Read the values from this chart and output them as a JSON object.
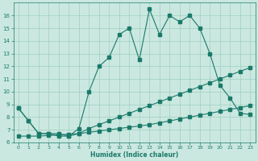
{
  "title": "",
  "xlabel": "Humidex (Indice chaleur)",
  "bg_color": "#cbe8e0",
  "grid_color": "#9ecfbf",
  "line_color": "#1a7a6a",
  "xlim": [
    -0.5,
    23.5
  ],
  "ylim": [
    6,
    17
  ],
  "xticks": [
    0,
    1,
    2,
    3,
    4,
    5,
    6,
    7,
    8,
    9,
    10,
    11,
    12,
    13,
    14,
    15,
    16,
    17,
    18,
    19,
    20,
    21,
    22,
    23
  ],
  "yticks": [
    6,
    7,
    8,
    9,
    10,
    11,
    12,
    13,
    14,
    15,
    16
  ],
  "line1_x": [
    0,
    1,
    2,
    3,
    4,
    5,
    6,
    7,
    8,
    9,
    10,
    11,
    12,
    13,
    14,
    15,
    16,
    17,
    18,
    19,
    20,
    21,
    22,
    23
  ],
  "line1_y": [
    8.7,
    7.7,
    6.7,
    6.7,
    6.7,
    6.5,
    6.7,
    7.1,
    7.4,
    7.7,
    8.0,
    8.3,
    8.6,
    8.9,
    9.2,
    9.5,
    9.8,
    10.1,
    10.4,
    10.7,
    11.0,
    11.3,
    11.6,
    11.9
  ],
  "line2_x": [
    0,
    1,
    2,
    3,
    4,
    5,
    6,
    7,
    8,
    9,
    10,
    11,
    12,
    13,
    14,
    15,
    16,
    17,
    18,
    19,
    20,
    21,
    22,
    23
  ],
  "line2_y": [
    6.5,
    6.5,
    6.5,
    6.55,
    6.6,
    6.65,
    6.7,
    6.8,
    6.9,
    7.0,
    7.1,
    7.2,
    7.3,
    7.4,
    7.55,
    7.7,
    7.85,
    8.0,
    8.15,
    8.3,
    8.45,
    8.6,
    8.75,
    8.9
  ],
  "line3_x": [
    0,
    1,
    2,
    3,
    4,
    5,
    6,
    7,
    8,
    9,
    10,
    11,
    12,
    13,
    14,
    15,
    16,
    17,
    18,
    19,
    20,
    21,
    22,
    23
  ],
  "line3_y": [
    8.7,
    7.7,
    6.7,
    6.7,
    6.5,
    6.5,
    7.1,
    10.0,
    12.0,
    12.7,
    14.5,
    15.0,
    12.5,
    16.5,
    14.5,
    16.0,
    15.5,
    16.0,
    15.0,
    13.0,
    10.5,
    9.5,
    8.3,
    8.2
  ]
}
